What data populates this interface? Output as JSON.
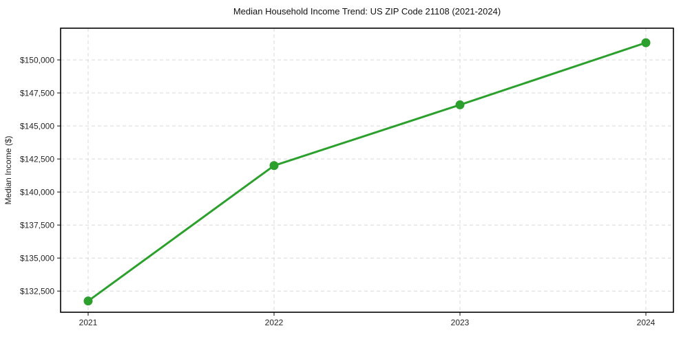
{
  "chart_data": {
    "type": "line",
    "title": "Median Household Income Trend: US ZIP Code 21108 (2021-2024)",
    "xlabel": "",
    "ylabel": "Median Income ($)",
    "categories": [
      "2021",
      "2022",
      "2023",
      "2024"
    ],
    "series": [
      {
        "name": "Median Household Income",
        "values": [
          131750,
          142000,
          146600,
          151300
        ]
      }
    ],
    "yticks": [
      {
        "value": 132500,
        "label": "$132,500"
      },
      {
        "value": 135000,
        "label": "$135,000"
      },
      {
        "value": 137500,
        "label": "$137,500"
      },
      {
        "value": 140000,
        "label": "$140,000"
      },
      {
        "value": 142500,
        "label": "$142,500"
      },
      {
        "value": 145000,
        "label": "$145,000"
      },
      {
        "value": 147500,
        "label": "$147,500"
      },
      {
        "value": 150000,
        "label": "$150,000"
      }
    ],
    "ylim": [
      130900,
      152400
    ],
    "grid": {
      "visible": true,
      "style": "dashed"
    },
    "legend": {
      "visible": false
    },
    "colors": {
      "line": "#2ca02c",
      "marker": "#2ca02c",
      "grid": "#d9d9d9",
      "spine": "#000000",
      "tick": "#333333"
    }
  }
}
